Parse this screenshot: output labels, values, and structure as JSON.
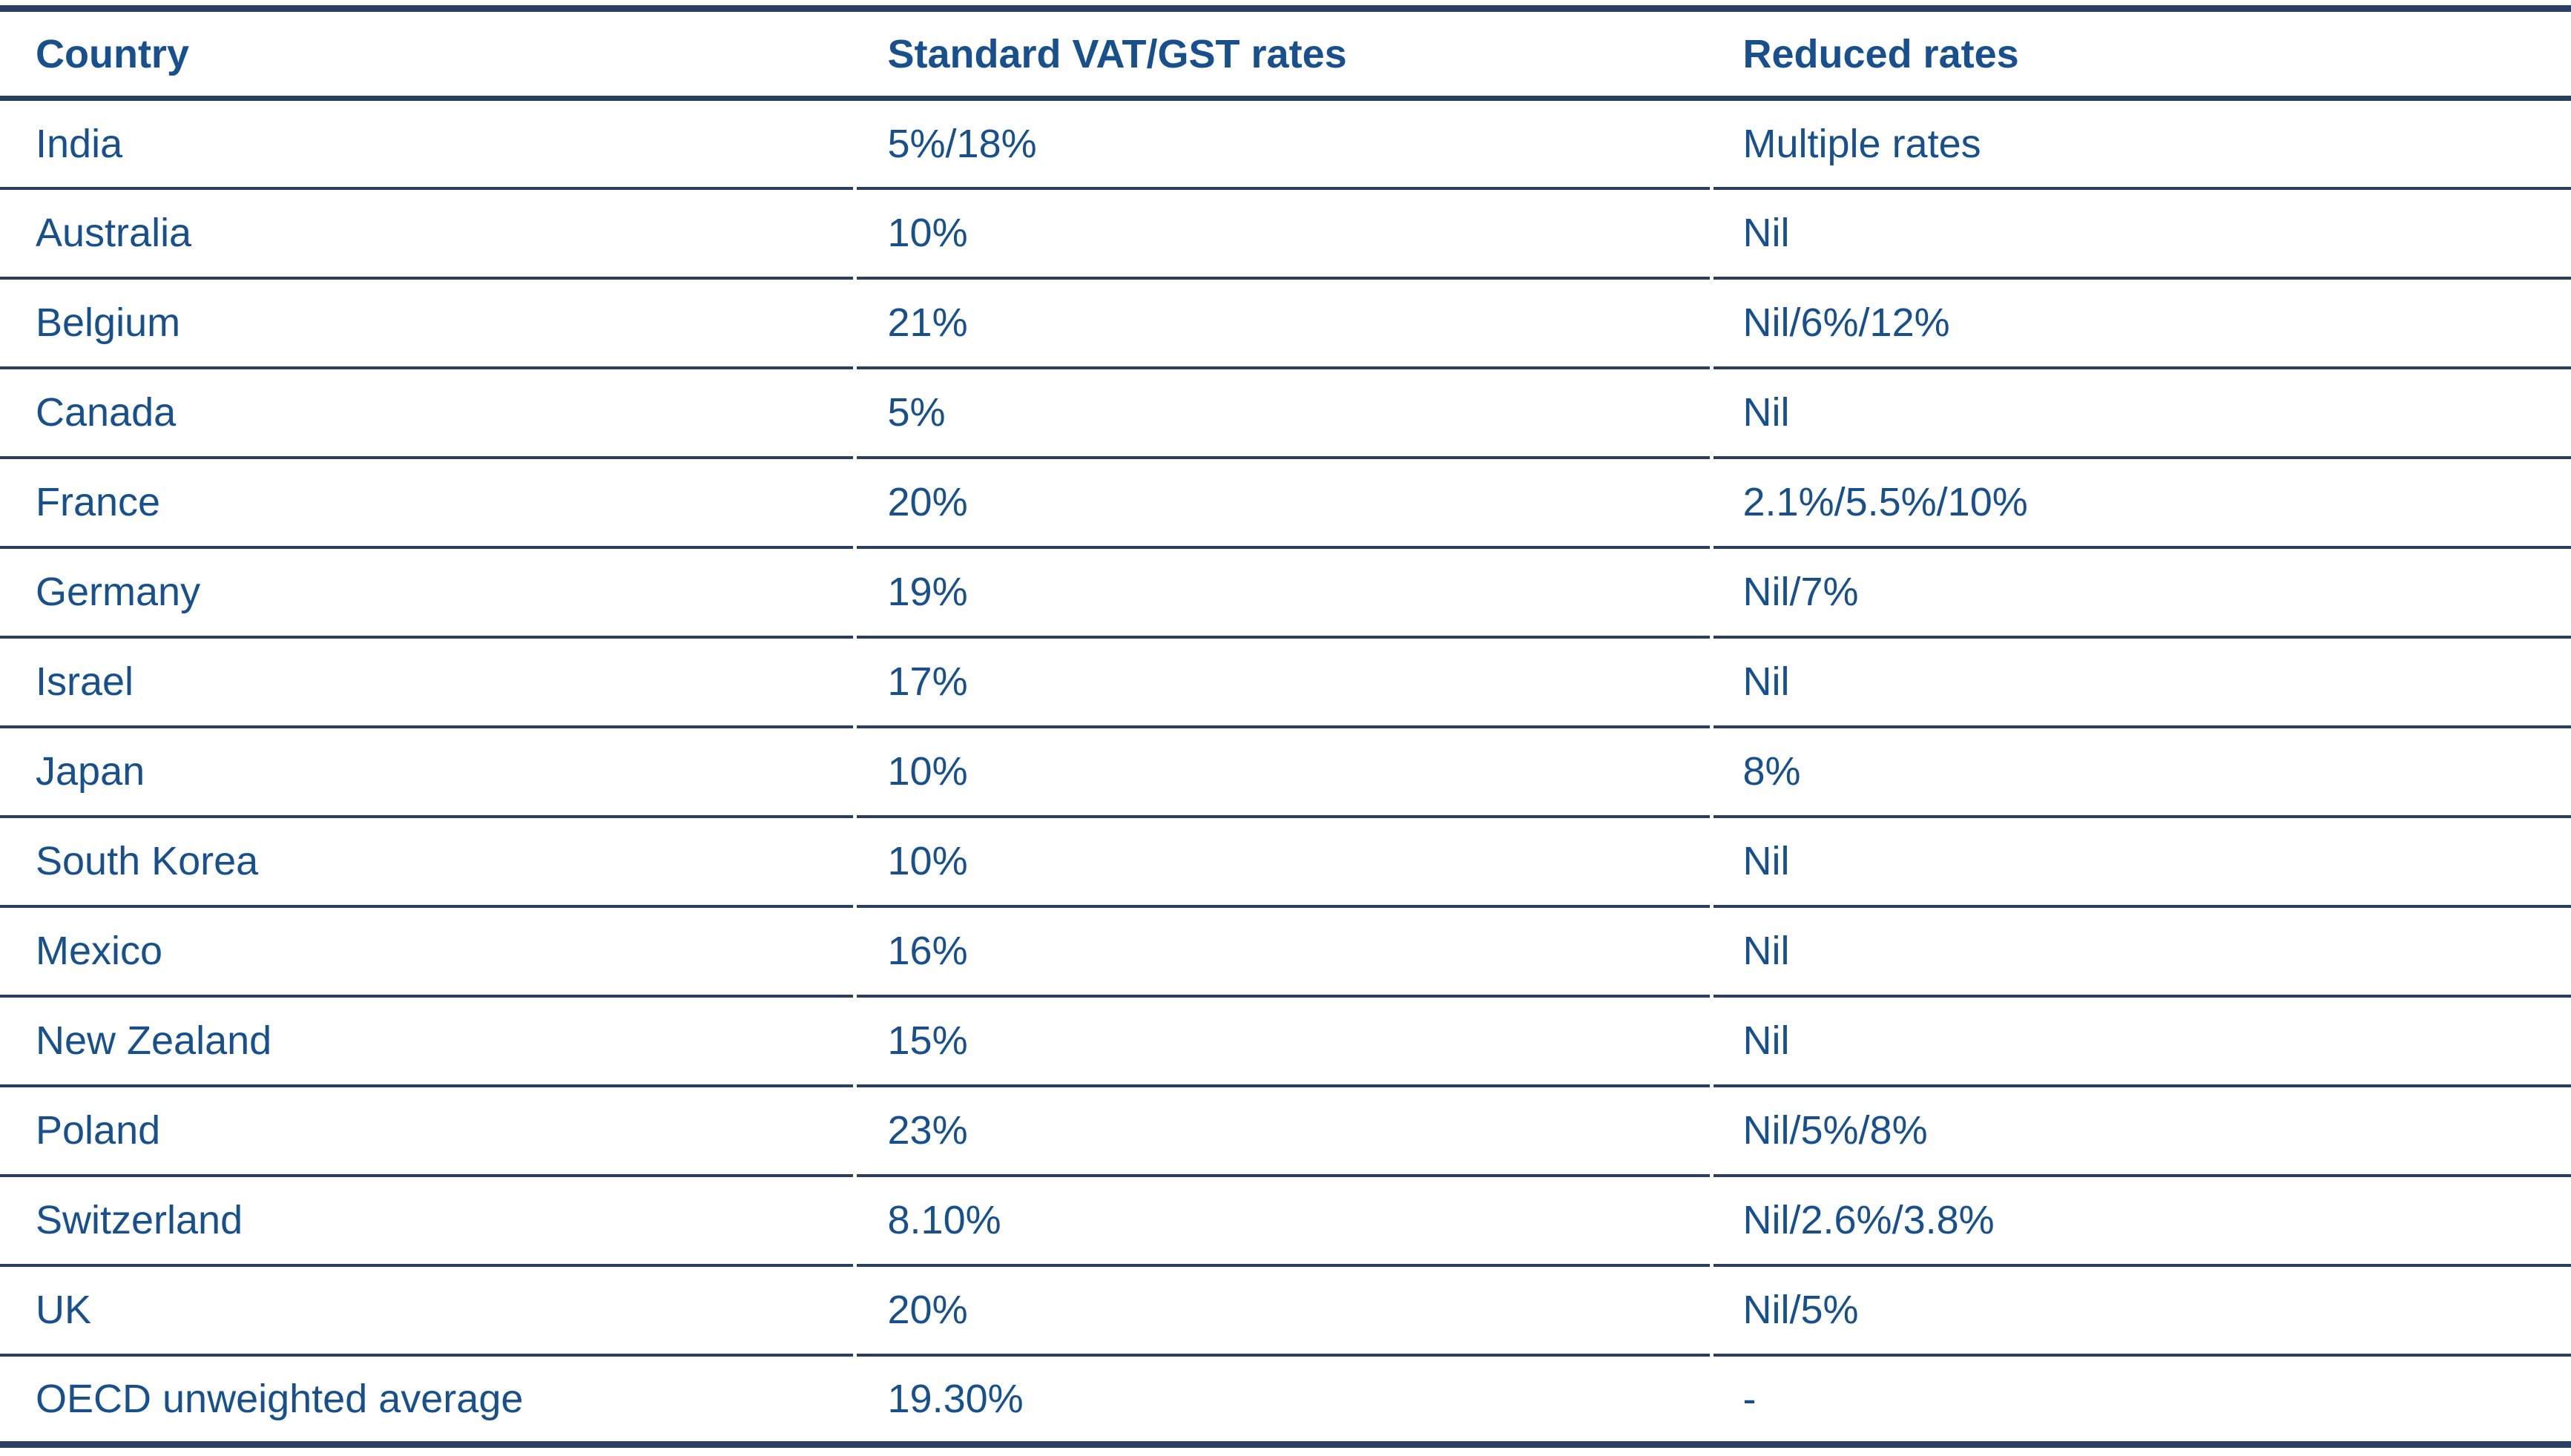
{
  "table": {
    "columns": [
      {
        "label": "Country"
      },
      {
        "label": "Standard VAT/GST rates"
      },
      {
        "label": "Reduced rates"
      }
    ],
    "rows": [
      {
        "country": "India",
        "standard": "5%/18%",
        "reduced": "Multiple rates"
      },
      {
        "country": "Australia",
        "standard": "10%",
        "reduced": "Nil"
      },
      {
        "country": "Belgium",
        "standard": "21%",
        "reduced": "Nil/6%/12%"
      },
      {
        "country": "Canada",
        "standard": "5%",
        "reduced": "Nil"
      },
      {
        "country": "France",
        "standard": "20%",
        "reduced": "2.1%/5.5%/10%"
      },
      {
        "country": "Germany",
        "standard": "19%",
        "reduced": "Nil/7%"
      },
      {
        "country": "Israel",
        "standard": "17%",
        "reduced": "Nil"
      },
      {
        "country": "Japan",
        "standard": "10%",
        "reduced": "8%"
      },
      {
        "country": "South Korea",
        "standard": "10%",
        "reduced": "Nil"
      },
      {
        "country": "Mexico",
        "standard": "16%",
        "reduced": "Nil"
      },
      {
        "country": "New Zealand",
        "standard": "15%",
        "reduced": "Nil"
      },
      {
        "country": "Poland",
        "standard": "23%",
        "reduced": "Nil/5%/8%"
      },
      {
        "country": "Switzerland",
        "standard": "8.10%",
        "reduced": "Nil/2.6%/3.8%"
      },
      {
        "country": "UK",
        "standard": "20%",
        "reduced": "Nil/5%"
      },
      {
        "country": "OECD unweighted average",
        "standard": "19.30%",
        "reduced": "-"
      }
    ]
  },
  "colors": {
    "text": "#17508C",
    "border": "#2A3E5F",
    "background": "#FFFFFF"
  }
}
